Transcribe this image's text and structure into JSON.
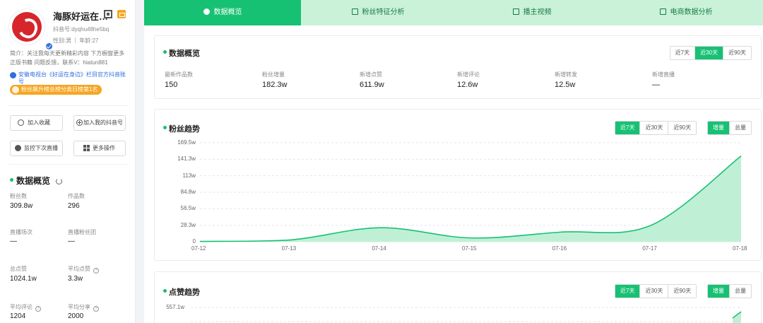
{
  "profile": {
    "name": "海豚好运在…",
    "douyin_id": "抖音号:dyqhu48he5bq",
    "gender": "性别:男",
    "age": "年龄:27",
    "bio": "简介：关注我每天更新精彩内容 下方橱窗更多正版书籍 问题反馈，联系V：hiatun881",
    "official": "安徽电视台《好运在身边》栏目官方抖音账号",
    "rank_badge": "粉丝飙升榜总榜分类日榜第1名"
  },
  "actions": {
    "collect": "加入收藏",
    "add_mine": "加入我的抖音号",
    "monitor": "监控下次直播",
    "more": "更多操作"
  },
  "left_overview": {
    "title": "数据概览",
    "stats": [
      {
        "label": "粉丝数",
        "value": "309.8w"
      },
      {
        "label": "作品数",
        "value": "296"
      },
      {
        "label": "直播场次",
        "value": "—"
      },
      {
        "label": "直播粉丝团",
        "value": "—"
      },
      {
        "label": "总点赞",
        "value": "1024.1w"
      },
      {
        "label": "平均点赞",
        "value": "3.3w"
      },
      {
        "label": "平均评论",
        "value": "1204"
      },
      {
        "label": "平均分享",
        "value": "2000"
      }
    ]
  },
  "tabs": [
    {
      "label": "数据概览",
      "active": true
    },
    {
      "label": "粉丝特征分析",
      "active": false
    },
    {
      "label": "播主视频",
      "active": false
    },
    {
      "label": "电商数据分析",
      "active": false
    }
  ],
  "overview_card": {
    "title": "数据概览",
    "ranges": [
      "近7天",
      "近30天",
      "近90天"
    ],
    "active_range": "近30天",
    "metrics": [
      {
        "label": "最新作品数",
        "value": "150"
      },
      {
        "label": "粉丝增量",
        "value": "182.3w"
      },
      {
        "label": "新增点赞",
        "value": "611.9w"
      },
      {
        "label": "新增评论",
        "value": "12.6w"
      },
      {
        "label": "新增转发",
        "value": "12.5w"
      },
      {
        "label": "新增直播",
        "value": "—"
      }
    ]
  },
  "fans_card": {
    "title": "粉丝趋势",
    "ranges": [
      "近7天",
      "近30天",
      "近90天"
    ],
    "active_range": "近7天",
    "modes": [
      "增量",
      "总量"
    ],
    "active_mode": "增量"
  },
  "likes_card": {
    "title": "点赞趋势",
    "ranges": [
      "近7天",
      "近30天",
      "近90天"
    ],
    "active_range": "近7天",
    "modes": [
      "增量",
      "总量"
    ],
    "active_mode": "增量",
    "y_top_tick": "557.1w"
  },
  "colors": {
    "accent": "#17c173",
    "tab_bg": "#c9f2d8",
    "area_fill": "#bff0d6",
    "badge": "#f5a623",
    "verified": "#2f6fe0"
  },
  "chart_data": {
    "type": "area",
    "title": "粉丝趋势",
    "x": [
      "07-12",
      "07-13",
      "07-14",
      "07-15",
      "07-16",
      "07-17",
      "07-18"
    ],
    "series": [
      {
        "name": "增量",
        "values": [
          0.5,
          3.0,
          24.0,
          6.5,
          16.5,
          28.0,
          147.0
        ]
      }
    ],
    "y_ticks": [
      "0",
      "28.3w",
      "56.5w",
      "84.8w",
      "113w",
      "141.3w",
      "169.5w"
    ],
    "ylim": [
      0,
      169.5
    ],
    "unit": "w",
    "grid": true
  }
}
